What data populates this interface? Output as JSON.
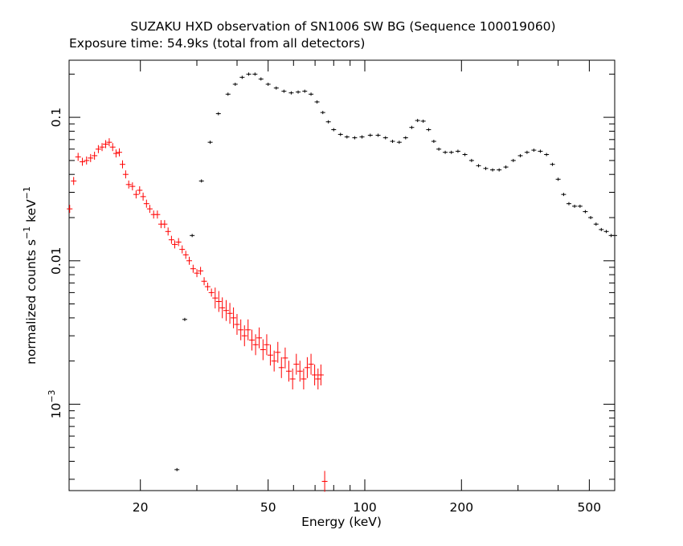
{
  "chart_data": {
    "type": "scatter",
    "title": "SUZAKU HXD observation of SN1006 SW BG (Sequence 100019060)",
    "subtitle": "Exposure time: 54.9ks (total from all detectors)",
    "xlabel": "Energy (keV)",
    "ylabel_main": "normalized counts s",
    "ylabel_exp1": "−1",
    "ylabel_mid": " keV",
    "ylabel_exp2": "−1",
    "x_scale": "log",
    "y_scale": "log",
    "xlim": [
      12,
      600
    ],
    "ylim": [
      0.00025,
      0.25
    ],
    "x_ticks": [
      {
        "value": 20,
        "label": "20"
      },
      {
        "value": 50,
        "label": "50"
      },
      {
        "value": 100,
        "label": "100"
      },
      {
        "value": 200,
        "label": "200"
      },
      {
        "value": 500,
        "label": "500"
      }
    ],
    "y_ticks": [
      {
        "value": 0.1,
        "label": "0.1"
      },
      {
        "value": 0.01,
        "label": "0.01"
      },
      {
        "value": 0.001,
        "label_base": "10",
        "label_exp": "−3"
      }
    ],
    "grid": false,
    "legend": "none",
    "series": [
      {
        "color": "#000000",
        "points": [
          [
            26.0,
            0.00035
          ],
          [
            27.5,
            0.0039
          ],
          [
            29.0,
            0.015
          ],
          [
            31.0,
            0.036
          ],
          [
            33.0,
            0.067
          ],
          [
            35.0,
            0.106
          ],
          [
            37.5,
            0.145
          ],
          [
            39.5,
            0.17
          ],
          [
            41.5,
            0.19
          ],
          [
            43.5,
            0.2
          ],
          [
            45.5,
            0.2
          ],
          [
            47.5,
            0.185
          ],
          [
            50,
            0.17
          ],
          [
            53,
            0.16
          ],
          [
            56,
            0.152
          ],
          [
            59,
            0.148
          ],
          [
            62,
            0.15
          ],
          [
            65,
            0.152
          ],
          [
            68,
            0.145
          ],
          [
            71,
            0.128
          ],
          [
            74,
            0.108
          ],
          [
            77,
            0.093
          ],
          [
            80,
            0.082
          ],
          [
            84,
            0.076
          ],
          [
            88,
            0.073
          ],
          [
            93,
            0.072
          ],
          [
            98,
            0.073
          ],
          [
            104,
            0.075
          ],
          [
            110,
            0.075
          ],
          [
            116,
            0.072
          ],
          [
            122,
            0.068
          ],
          [
            128,
            0.067
          ],
          [
            134,
            0.072
          ],
          [
            140,
            0.085
          ],
          [
            146,
            0.095
          ],
          [
            152,
            0.094
          ],
          [
            158,
            0.082
          ],
          [
            164,
            0.068
          ],
          [
            170,
            0.06
          ],
          [
            178,
            0.057
          ],
          [
            186,
            0.057
          ],
          [
            195,
            0.058
          ],
          [
            205,
            0.055
          ],
          [
            215,
            0.05
          ],
          [
            226,
            0.046
          ],
          [
            238,
            0.044
          ],
          [
            250,
            0.043
          ],
          [
            262,
            0.043
          ],
          [
            275,
            0.045
          ],
          [
            290,
            0.05
          ],
          [
            305,
            0.054
          ],
          [
            320,
            0.057
          ],
          [
            336,
            0.059
          ],
          [
            352,
            0.058
          ],
          [
            368,
            0.055
          ],
          [
            384,
            0.047
          ],
          [
            400,
            0.037
          ],
          [
            416,
            0.029
          ],
          [
            432,
            0.025
          ],
          [
            450,
            0.024
          ],
          [
            468,
            0.024
          ],
          [
            486,
            0.022
          ],
          [
            505,
            0.02
          ],
          [
            525,
            0.018
          ],
          [
            545,
            0.0165
          ],
          [
            565,
            0.016
          ],
          [
            585,
            0.015
          ],
          [
            600,
            0.015
          ]
        ]
      },
      {
        "color": "#ff0000",
        "points": [
          [
            12.05,
            0.023
          ],
          [
            12.4,
            0.036
          ],
          [
            12.8,
            0.053
          ],
          [
            13.2,
            0.049
          ],
          [
            13.6,
            0.05
          ],
          [
            14.0,
            0.052
          ],
          [
            14.4,
            0.054
          ],
          [
            14.8,
            0.06
          ],
          [
            15.2,
            0.062
          ],
          [
            15.6,
            0.065
          ],
          [
            16.0,
            0.067
          ],
          [
            16.4,
            0.062
          ],
          [
            16.8,
            0.056
          ],
          [
            17.2,
            0.057
          ],
          [
            17.6,
            0.047
          ],
          [
            18.0,
            0.04
          ],
          [
            18.4,
            0.034
          ],
          [
            18.9,
            0.033
          ],
          [
            19.4,
            0.029
          ],
          [
            19.9,
            0.031
          ],
          [
            20.4,
            0.028
          ],
          [
            20.9,
            0.025
          ],
          [
            21.4,
            0.023
          ],
          [
            22.0,
            0.021
          ],
          [
            22.6,
            0.021
          ],
          [
            23.2,
            0.018
          ],
          [
            23.8,
            0.018
          ],
          [
            24.4,
            0.016
          ],
          [
            25.0,
            0.014
          ],
          [
            25.6,
            0.013
          ],
          [
            26.3,
            0.0135
          ],
          [
            27.0,
            0.012
          ],
          [
            27.7,
            0.011
          ],
          [
            28.4,
            0.01
          ],
          [
            29.2,
            0.0088
          ],
          [
            30.0,
            0.0082
          ],
          [
            30.8,
            0.0085
          ],
          [
            31.6,
            0.0072
          ],
          [
            32.4,
            0.0066
          ],
          [
            33.3,
            0.006
          ],
          [
            34.2,
            0.0055
          ],
          [
            35.1,
            0.0052
          ],
          [
            36.0,
            0.0047
          ],
          [
            37.0,
            0.0045
          ],
          [
            38.0,
            0.0043
          ],
          [
            39.0,
            0.004
          ],
          [
            40.0,
            0.0036
          ],
          [
            41.1,
            0.0033
          ],
          [
            42.2,
            0.003
          ],
          [
            43.3,
            0.0033
          ],
          [
            44.5,
            0.0028
          ],
          [
            45.7,
            0.0026
          ],
          [
            46.9,
            0.0029
          ],
          [
            48.2,
            0.0024
          ],
          [
            49.5,
            0.0026
          ],
          [
            50.8,
            0.0022
          ],
          [
            52.2,
            0.002
          ],
          [
            53.6,
            0.0023
          ],
          [
            55.0,
            0.0018
          ],
          [
            56.5,
            0.0021
          ],
          [
            58.0,
            0.0017
          ],
          [
            59.6,
            0.0015
          ],
          [
            61.2,
            0.0019
          ],
          [
            62.8,
            0.0017
          ],
          [
            64.5,
            0.0015
          ],
          [
            66.2,
            0.0018
          ],
          [
            68.0,
            0.0019
          ],
          [
            69.8,
            0.0016
          ],
          [
            71.5,
            0.0015
          ],
          [
            73.0,
            0.0016
          ],
          [
            75.0,
            0.00029
          ]
        ]
      }
    ]
  }
}
